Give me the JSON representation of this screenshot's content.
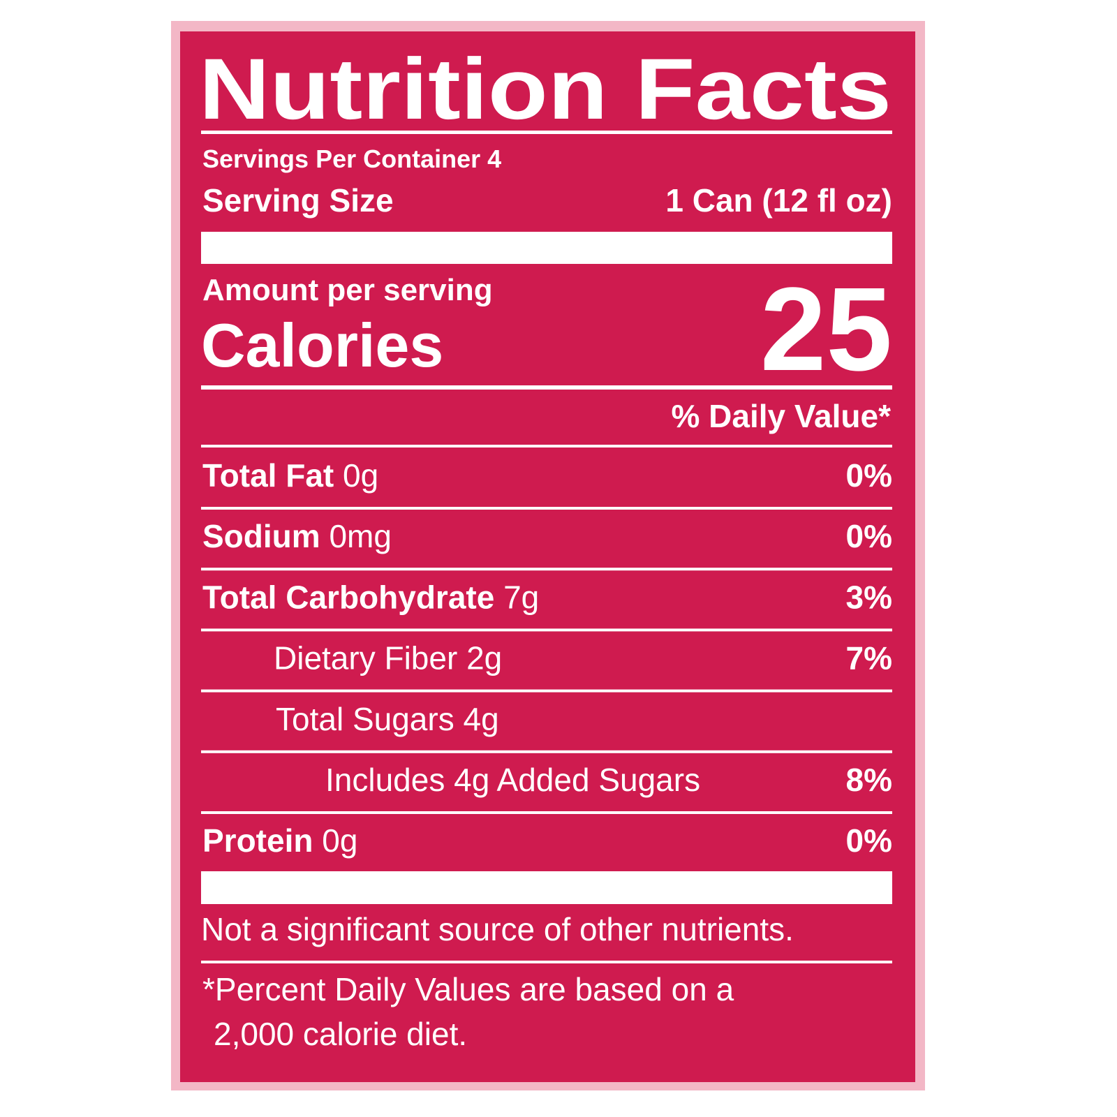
{
  "title": "Nutrition Facts",
  "servings": {
    "label": "Servings Per Container",
    "value": "4"
  },
  "serving_size": {
    "label": "Serving Size",
    "value": "1 Can (12 fl oz)"
  },
  "amount_per_serving": "Amount per serving",
  "calories": {
    "label": "Calories",
    "value": "25"
  },
  "daily_value_header": "% Daily Value*",
  "nutrients": [
    {
      "name": "Total Fat",
      "amount": "0g",
      "dv": "0%"
    },
    {
      "name": "Sodium",
      "amount": "0mg",
      "dv": "0%"
    },
    {
      "name": "Total Carbohydrate",
      "amount": "7g",
      "dv": "3%"
    },
    {
      "name": "Dietary Fiber",
      "amount": "2g",
      "dv": "7%"
    },
    {
      "name": "Total Sugars",
      "amount": "4g"
    },
    {
      "name": "Includes 4g Added Sugars",
      "dv": "8%"
    },
    {
      "name": "Protein",
      "amount": "0g",
      "dv": "0%"
    }
  ],
  "note": "Not a significant source of other nutrients.",
  "footnote": [
    "*Percent Daily Values are based on a",
    "2,000 calorie diet."
  ]
}
